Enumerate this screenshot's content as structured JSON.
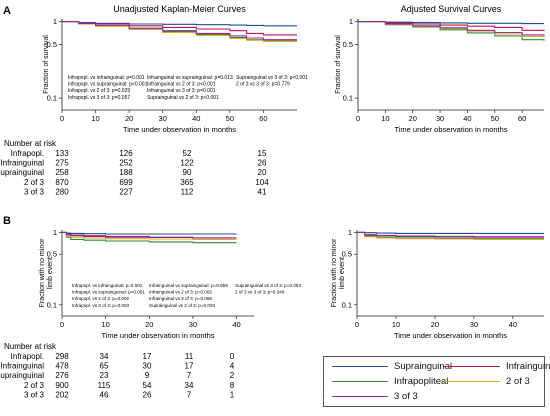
{
  "panel_labels": {
    "a": "A",
    "b": "B"
  },
  "risk_header": "Number at risk",
  "risk_groups": [
    "Infrapopl.",
    "Infrainguinal",
    "Suprainguinal",
    "2 of 3",
    "3 of 3"
  ],
  "legend": [
    {
      "name": "Suprainguinal",
      "color": "#1f4e9a"
    },
    {
      "name": "Infrainguinal",
      "color": "#b5174c"
    },
    {
      "name": "Infrapopliteal",
      "color": "#2e8b32"
    },
    {
      "name": "2 of 3",
      "color": "#e4a72a"
    },
    {
      "name": "3 of 3",
      "color": "#8b2f9a"
    }
  ],
  "chart_data": [
    {
      "type": "line",
      "title": "Unadjusted Kaplan-Meier Curves",
      "xlabel": "Time under observation in months",
      "ylabel": "Fraction of survival",
      "xlim": [
        0,
        70
      ],
      "xticks": [
        0,
        10,
        20,
        30,
        40,
        50,
        60
      ],
      "yscale": "log",
      "ylim": [
        0.07,
        1.08
      ],
      "yticks": [
        1,
        0.5,
        0.1
      ],
      "ytick_labels": [
        "1",
        "0.5",
        "0.1"
      ],
      "grid": false,
      "series": [
        {
          "name": "Suprainguinal",
          "color": "#1f4e9a",
          "x": [
            0,
            5,
            10,
            20,
            30,
            40,
            50,
            55,
            60,
            70
          ],
          "y": [
            1,
            0.97,
            0.95,
            0.93,
            0.92,
            0.91,
            0.9,
            0.89,
            0.88,
            0.88
          ]
        },
        {
          "name": "Infrainguinal",
          "color": "#b5174c",
          "x": [
            0,
            5,
            10,
            20,
            30,
            40,
            50,
            55,
            60,
            70
          ],
          "y": [
            1,
            0.95,
            0.93,
            0.88,
            0.84,
            0.8,
            0.76,
            0.7,
            0.67,
            0.67
          ]
        },
        {
          "name": "Infrapopliteal",
          "color": "#2e8b32",
          "x": [
            0,
            5,
            10,
            20,
            30,
            40,
            50,
            55,
            60,
            70
          ],
          "y": [
            1,
            0.93,
            0.88,
            0.8,
            0.74,
            0.68,
            0.62,
            0.58,
            0.56,
            0.56
          ]
        },
        {
          "name": "2 of 3",
          "color": "#e4a72a",
          "x": [
            0,
            5,
            10,
            20,
            30,
            40,
            50,
            55,
            60,
            70
          ],
          "y": [
            1,
            0.93,
            0.87,
            0.79,
            0.72,
            0.66,
            0.6,
            0.57,
            0.55,
            0.55
          ]
        },
        {
          "name": "3 of 3",
          "color": "#8b2f9a",
          "x": [
            0,
            5,
            10,
            20,
            30,
            40,
            50,
            55,
            60,
            70
          ],
          "y": [
            1,
            0.94,
            0.89,
            0.82,
            0.76,
            0.7,
            0.65,
            0.61,
            0.58,
            0.58
          ]
        }
      ],
      "annotations": [
        "Infrapopl. vs infrainguinal: p=0.001",
        "Infrapopl. vs suprainguinal: p<0.001",
        "Infrapopl. vs 2 of 3: p=0.029",
        "Infrapopl. vs 3 of 3: p=0.057",
        "Infrainguinal vs suprainguinal: p=0.013",
        "Infrainguinal vs 2 of 3: p<0.001",
        "Infrainguinal vs 3 of 3: p=0.001",
        "Suprainguinal vs 2 of 3: p<0.001",
        "Suprainguinal vs 3 of 3: p<0.001",
        "2 of 3 vs 3 of 3: p=0.779"
      ],
      "risk_times": [
        0,
        20,
        40,
        60
      ],
      "risk_table": [
        [
          133,
          126,
          52,
          15
        ],
        [
          275,
          252,
          122,
          26
        ],
        [
          258,
          188,
          90,
          20
        ],
        [
          870,
          699,
          365,
          104
        ],
        [
          280,
          227,
          112,
          41
        ]
      ]
    },
    {
      "type": "line",
      "title": "Adjusted Survival Curves",
      "xlabel": "Time under observation in months",
      "ylabel": "Fraction of survival",
      "xlim": [
        0,
        68
      ],
      "xticks": [
        0,
        10,
        20,
        30,
        40,
        50,
        60
      ],
      "yscale": "log",
      "ylim": [
        0.07,
        1.08
      ],
      "yticks": [
        1,
        0.5,
        0.1
      ],
      "ytick_labels": [
        "1",
        "0.5",
        "0.1"
      ],
      "grid": false,
      "series": [
        {
          "name": "Suprainguinal",
          "color": "#1f4e9a",
          "x": [
            0,
            10,
            20,
            30,
            40,
            50,
            60,
            68
          ],
          "y": [
            1,
            0.98,
            0.97,
            0.96,
            0.95,
            0.95,
            0.94,
            0.94
          ]
        },
        {
          "name": "Infrainguinal",
          "color": "#b5174c",
          "x": [
            0,
            10,
            20,
            30,
            40,
            50,
            60,
            68
          ],
          "y": [
            1,
            0.96,
            0.93,
            0.9,
            0.87,
            0.84,
            0.77,
            0.75
          ]
        },
        {
          "name": "Infrapopliteal",
          "color": "#2e8b32",
          "x": [
            0,
            10,
            20,
            30,
            40,
            50,
            60,
            68
          ],
          "y": [
            1,
            0.91,
            0.85,
            0.78,
            0.71,
            0.65,
            0.58,
            0.56
          ]
        },
        {
          "name": "2 of 3",
          "color": "#e4a72a",
          "x": [
            0,
            10,
            20,
            30,
            40,
            50,
            60,
            68
          ],
          "y": [
            1,
            0.92,
            0.87,
            0.81,
            0.75,
            0.69,
            0.64,
            0.62
          ]
        },
        {
          "name": "3 of 3",
          "color": "#8b2f9a",
          "x": [
            0,
            10,
            20,
            30,
            40,
            50,
            60,
            68
          ],
          "y": [
            1,
            0.93,
            0.88,
            0.83,
            0.77,
            0.72,
            0.67,
            0.65
          ]
        }
      ]
    },
    {
      "type": "line",
      "title": "",
      "xlabel": "Time under observation in months",
      "ylabel": "Fraction with no minor limb event",
      "xlim": [
        0,
        44
      ],
      "xticks": [
        0,
        10,
        20,
        30,
        40
      ],
      "yscale": "log",
      "ylim": [
        0.07,
        1.08
      ],
      "yticks": [
        1,
        0.5,
        0.1
      ],
      "ytick_labels": [
        "1",
        "0.5",
        "0.1"
      ],
      "grid": false,
      "series": [
        {
          "name": "Suprainguinal",
          "color": "#1f4e9a",
          "x": [
            0,
            1,
            2,
            5,
            10,
            20,
            30,
            40
          ],
          "y": [
            1,
            0.98,
            0.97,
            0.96,
            0.95,
            0.95,
            0.95,
            0.95
          ]
        },
        {
          "name": "Infrainguinal",
          "color": "#b5174c",
          "x": [
            0,
            1,
            2,
            5,
            10,
            20,
            30,
            40
          ],
          "y": [
            1,
            0.95,
            0.92,
            0.9,
            0.88,
            0.86,
            0.84,
            0.84
          ]
        },
        {
          "name": "Infrapopliteal",
          "color": "#2e8b32",
          "x": [
            0,
            1,
            2,
            5,
            10,
            20,
            30,
            40
          ],
          "y": [
            1,
            0.86,
            0.8,
            0.78,
            0.76,
            0.74,
            0.72,
            0.72
          ]
        },
        {
          "name": "2 of 3",
          "color": "#e4a72a",
          "x": [
            0,
            1,
            2,
            5,
            10,
            20,
            30,
            40
          ],
          "y": [
            1,
            0.9,
            0.86,
            0.84,
            0.82,
            0.81,
            0.8,
            0.8
          ]
        },
        {
          "name": "3 of 3",
          "color": "#8b2f9a",
          "x": [
            0,
            1,
            2,
            5,
            10,
            20,
            30,
            40
          ],
          "y": [
            1,
            0.93,
            0.9,
            0.88,
            0.86,
            0.85,
            0.84,
            0.84
          ]
        }
      ],
      "annotations": [
        "Infrapopl. vs infrainguinal: p=0.001",
        "Infrapopl. vs suprainguinal: p<0.001",
        "Infrapopl. vs 2 of 3: p=0.002",
        "Infrapopl. vs 3 of 3: p=0.003",
        "Infrainguinal vs suprainguinal: p=0.859",
        "Infrainguinal vs 2 of 3: p=0.002",
        "Infrainguinal vs 3 of 3: p=0.066",
        "Suprainguinal vs 2 of 3: p=0.020",
        "Suprainguinal vs 3 of 3: p=0.053",
        "2 of 3 vs 3 of 3: p=0.346"
      ],
      "risk_times": [
        0,
        10,
        20,
        30,
        40
      ],
      "risk_table": [
        [
          298,
          34,
          17,
          11,
          0
        ],
        [
          478,
          65,
          30,
          17,
          4
        ],
        [
          276,
          23,
          9,
          7,
          2
        ],
        [
          900,
          115,
          54,
          34,
          8
        ],
        [
          202,
          46,
          26,
          7,
          1
        ]
      ]
    },
    {
      "type": "line",
      "title": "",
      "xlabel": "Time under observation in months",
      "ylabel": "Fraction with no minor limb event",
      "xlim": [
        0,
        48
      ],
      "xticks": [
        0,
        10,
        20,
        30,
        40
      ],
      "yscale": "log",
      "ylim": [
        0.07,
        1.08
      ],
      "yticks": [
        1,
        0.5,
        0.1
      ],
      "ytick_labels": [
        "1",
        "0.5",
        "0.1"
      ],
      "grid": false,
      "series": [
        {
          "name": "Suprainguinal",
          "color": "#1f4e9a",
          "x": [
            0,
            2,
            5,
            10,
            20,
            30,
            40,
            48
          ],
          "y": [
            1,
            0.99,
            0.98,
            0.97,
            0.97,
            0.97,
            0.97,
            0.97
          ]
        },
        {
          "name": "Infrainguinal",
          "color": "#b5174c",
          "x": [
            0,
            2,
            5,
            10,
            20,
            30,
            40,
            48
          ],
          "y": [
            1,
            0.93,
            0.91,
            0.89,
            0.88,
            0.87,
            0.87,
            0.87
          ]
        },
        {
          "name": "Infrapopliteal",
          "color": "#2e8b32",
          "x": [
            0,
            2,
            5,
            10,
            20,
            30,
            40,
            48
          ],
          "y": [
            1,
            0.89,
            0.86,
            0.84,
            0.83,
            0.82,
            0.82,
            0.82
          ]
        },
        {
          "name": "2 of 3",
          "color": "#e4a72a",
          "x": [
            0,
            2,
            5,
            10,
            20,
            30,
            40,
            48
          ],
          "y": [
            1,
            0.87,
            0.84,
            0.82,
            0.81,
            0.8,
            0.8,
            0.8
          ]
        },
        {
          "name": "3 of 3",
          "color": "#8b2f9a",
          "x": [
            0,
            2,
            5,
            10,
            20,
            30,
            40,
            48
          ],
          "y": [
            1,
            0.92,
            0.9,
            0.88,
            0.87,
            0.86,
            0.86,
            0.86
          ]
        }
      ]
    }
  ]
}
